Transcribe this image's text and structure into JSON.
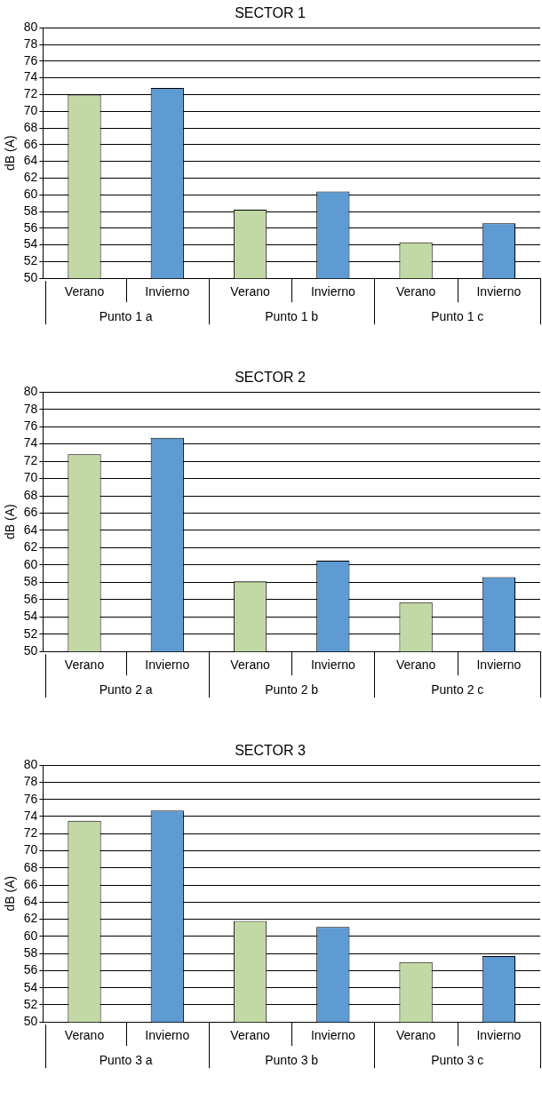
{
  "chart_data": [
    {
      "type": "bar",
      "title": "SECTOR 1",
      "ylabel": "dB (A)",
      "categories": [
        "Punto 1 a",
        "Punto 1 b",
        "Punto 1 c"
      ],
      "series": [
        {
          "name": "Verano",
          "color": "#c3d9a5",
          "values": [
            72.0,
            58.2,
            54.3
          ]
        },
        {
          "name": "Invierno",
          "color": "#5e9bd3",
          "values": [
            72.8,
            60.4,
            56.6
          ]
        }
      ],
      "ylim": [
        50,
        80
      ],
      "yticks": [
        50,
        52,
        54,
        56,
        58,
        60,
        62,
        64,
        66,
        68,
        70,
        72,
        74,
        76,
        78,
        80
      ],
      "grid": "y"
    },
    {
      "type": "bar",
      "title": "SECTOR 2",
      "ylabel": "dB (A)",
      "categories": [
        "Punto 2 a",
        "Punto 2 b",
        "Punto 2 c"
      ],
      "series": [
        {
          "name": "Verano",
          "color": "#c3d9a5",
          "values": [
            72.8,
            58.1,
            55.7
          ]
        },
        {
          "name": "Invierno",
          "color": "#5e9bd3",
          "values": [
            74.7,
            60.5,
            58.6
          ]
        }
      ],
      "ylim": [
        50,
        80
      ],
      "yticks": [
        50,
        52,
        54,
        56,
        58,
        60,
        62,
        64,
        66,
        68,
        70,
        72,
        74,
        76,
        78,
        80
      ],
      "grid": "y"
    },
    {
      "type": "bar",
      "title": "SECTOR 3",
      "ylabel": "dB (A)",
      "categories": [
        "Punto 3 a",
        "Punto 3 b",
        "Punto 3 c"
      ],
      "series": [
        {
          "name": "Verano",
          "color": "#c3d9a5",
          "values": [
            73.5,
            61.8,
            57.0
          ]
        },
        {
          "name": "Invierno",
          "color": "#5e9bd3",
          "values": [
            74.7,
            61.1,
            57.7
          ]
        }
      ],
      "ylim": [
        50,
        80
      ],
      "yticks": [
        50,
        52,
        54,
        56,
        58,
        60,
        62,
        64,
        66,
        68,
        70,
        72,
        74,
        76,
        78,
        80
      ],
      "grid": "y"
    }
  ]
}
